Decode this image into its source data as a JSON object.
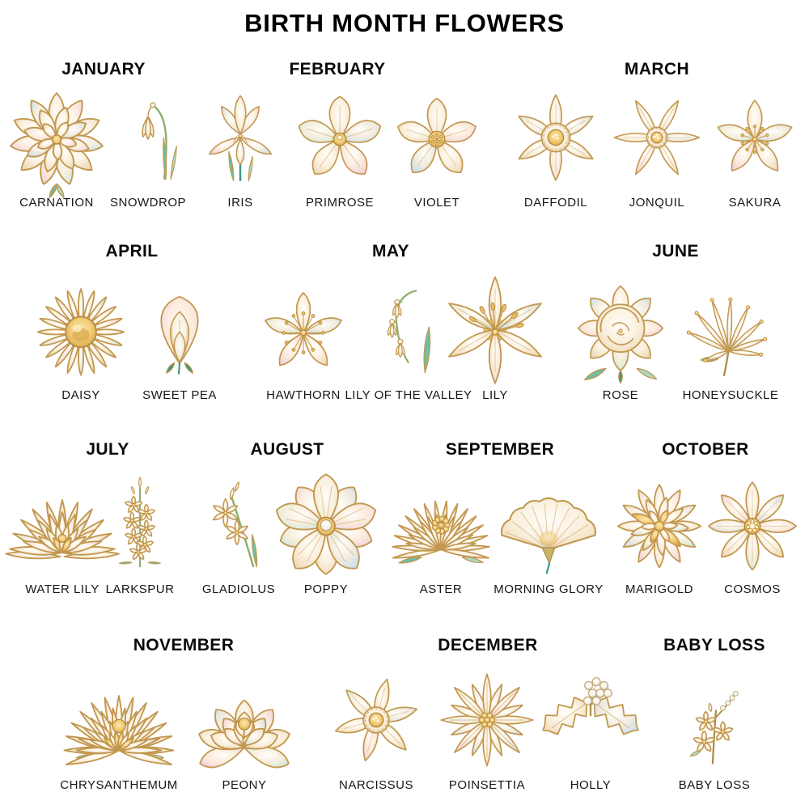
{
  "title": "BIRTH MONTH FLOWERS",
  "palette": {
    "background": "#ffffff",
    "text": "#000000",
    "gold_outline": "#c2974e",
    "cream_petal": "#faf0de",
    "blush_pink": "#f3cfdd",
    "powder_blue": "#c7dfec",
    "mint": "#cdeadd",
    "gold_center": "#f2cb74",
    "leaf_green": "#6cc0a6"
  },
  "rows": [
    {
      "groups": [
        {
          "month": "JANUARY",
          "flowers": [
            {
              "name": "CARNATION",
              "icon": "carnation"
            },
            {
              "name": "SNOWDROP",
              "icon": "snowdrop"
            }
          ]
        },
        {
          "month": "FEBRUARY",
          "flowers": [
            {
              "name": "IRIS",
              "icon": "iris"
            },
            {
              "name": "PRIMROSE",
              "icon": "primrose"
            },
            {
              "name": "VIOLET",
              "icon": "violet"
            }
          ]
        },
        {
          "month": "MARCH",
          "flowers": [
            {
              "name": "DAFFODIL",
              "icon": "daffodil"
            },
            {
              "name": "JONQUIL",
              "icon": "jonquil"
            },
            {
              "name": "SAKURA",
              "icon": "sakura"
            }
          ]
        }
      ]
    },
    {
      "groups": [
        {
          "month": "APRIL",
          "flowers": [
            {
              "name": "DAISY",
              "icon": "daisy"
            },
            {
              "name": "SWEET PEA",
              "icon": "sweetpea"
            }
          ]
        },
        {
          "month": "MAY",
          "flowers": [
            {
              "name": "HAWTHORN",
              "icon": "hawthorn"
            },
            {
              "name": "LILY OF THE VALLEY",
              "icon": "lotv"
            },
            {
              "name": "LILY",
              "icon": "lily"
            }
          ]
        },
        {
          "month": "JUNE",
          "flowers": [
            {
              "name": "ROSE",
              "icon": "rose"
            },
            {
              "name": "HONEYSUCKLE",
              "icon": "honeysuckle"
            }
          ]
        }
      ]
    },
    {
      "groups": [
        {
          "month": "JULY",
          "flowers": [
            {
              "name": "WATER LILY",
              "icon": "waterlily"
            },
            {
              "name": "LARKSPUR",
              "icon": "larkspur"
            }
          ]
        },
        {
          "month": "AUGUST",
          "flowers": [
            {
              "name": "GLADIOLUS",
              "icon": "gladiolus"
            },
            {
              "name": "POPPY",
              "icon": "poppy"
            }
          ]
        },
        {
          "month": "SEPTEMBER",
          "flowers": [
            {
              "name": "ASTER",
              "icon": "aster"
            },
            {
              "name": "MORNING GLORY",
              "icon": "morningglory"
            }
          ]
        },
        {
          "month": "OCTOBER",
          "flowers": [
            {
              "name": "MARIGOLD",
              "icon": "marigold"
            },
            {
              "name": "COSMOS",
              "icon": "cosmos"
            }
          ]
        }
      ]
    },
    {
      "groups": [
        {
          "month": "NOVEMBER",
          "flowers": [
            {
              "name": "CHRYSANTHEMUM",
              "icon": "chrysanthemum"
            },
            {
              "name": "PEONY",
              "icon": "peony"
            }
          ]
        },
        {
          "month": "DECEMBER",
          "flowers": [
            {
              "name": "NARCISSUS",
              "icon": "narcissus"
            },
            {
              "name": "POINSETTIA",
              "icon": "poinsettia"
            },
            {
              "name": "HOLLY",
              "icon": "holly"
            }
          ]
        },
        {
          "month": "BABY LOSS",
          "flowers": [
            {
              "name": "BABY LOSS",
              "icon": "babyloss"
            }
          ]
        }
      ]
    }
  ]
}
